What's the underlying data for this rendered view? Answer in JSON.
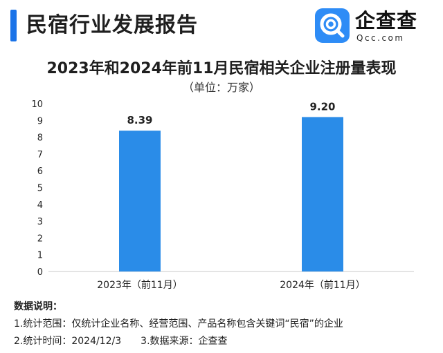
{
  "header": {
    "title": "民宿行业发展报告",
    "logo": {
      "name": "企查查",
      "domain": "Qcc.com",
      "icon": "qcc-logo-icon",
      "color": "#2e8cf6"
    },
    "accent_color": "#1a73e8"
  },
  "chart_data": {
    "type": "bar",
    "title": "2023年和2024年前11月民宿相关企业注册量表现",
    "unit_label": "（单位：万家）",
    "categories": [
      "2023年（前11月）",
      "2024年（前11月）"
    ],
    "values": [
      8.39,
      9.2
    ],
    "data_labels": [
      "8.39",
      "9.20"
    ],
    "ylim": [
      0,
      10
    ],
    "yticks": [
      "0",
      "1",
      "2",
      "3",
      "4",
      "5",
      "6",
      "7",
      "8",
      "9",
      "10"
    ],
    "bar_color": "#2a8ce8",
    "grid": false,
    "legend": false
  },
  "notes": {
    "heading": "数据说明：",
    "line1": "1.统计范围：仅统计企业名称、经营范围、产品名称包含关键词“民宿”的企业",
    "line2_a": "2.统计时间：2024/12/3",
    "line2_b": "3.数据来源：企查查"
  }
}
